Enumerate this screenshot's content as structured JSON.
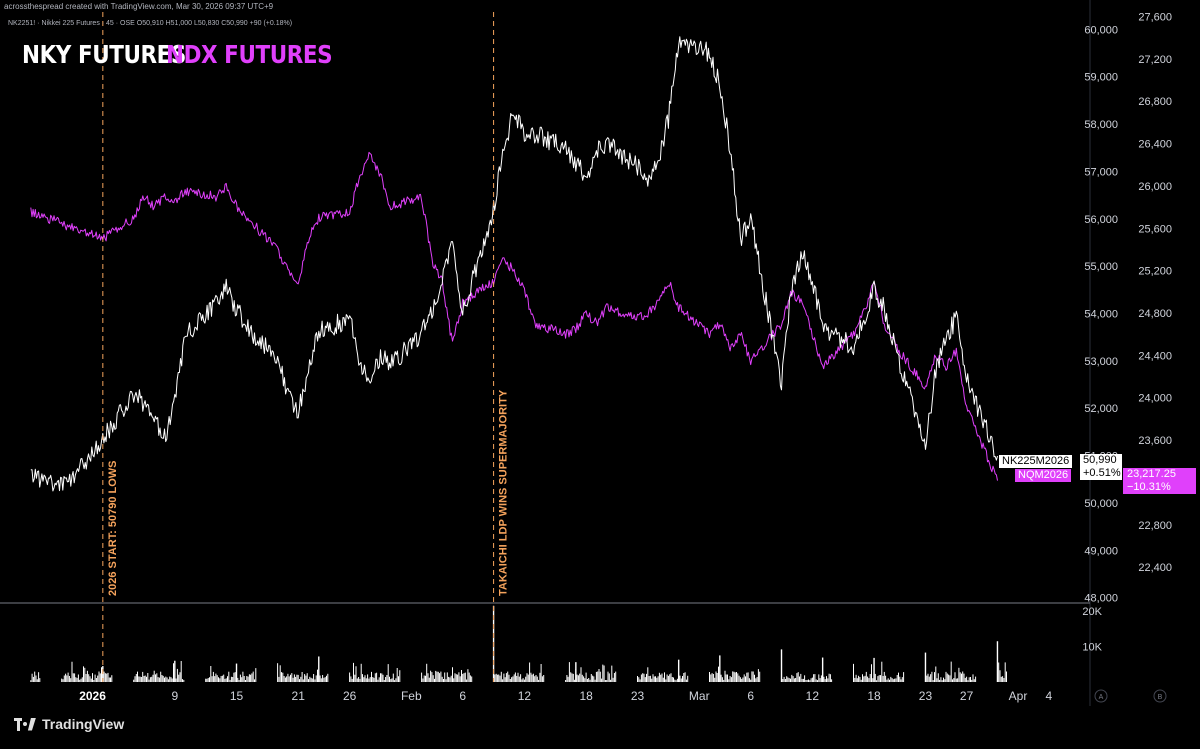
{
  "header": {
    "credit": "acrossthespread created with TradingView.com, Mar 30, 2026 09:37 UTC+9",
    "symbol_line": "NK2251! · Nikkei 225 Futures · 45 · OSE  O50,910  H51,000  L50,830  C50,990  +90 (+0.18%)"
  },
  "titles": {
    "nky": "NKY FUTURES",
    "ndx": "NDX FUTURES"
  },
  "annotations": [
    {
      "label": "2026 START: 50790 LOWS",
      "date": "2026-01-02"
    },
    {
      "label": "TAKAICHI LDP WINS SUPERMAJORITY",
      "date": "2026-02-09"
    }
  ],
  "price_tags": {
    "nky": {
      "symbol": "NK225M2026",
      "price": "50,990",
      "change": "+0.51%"
    },
    "ndx": {
      "symbol": "NQM2026",
      "price": "23,217.25",
      "change": "−10.31%"
    }
  },
  "footer": {
    "brand": "TradingView",
    "axis_buttons": [
      "A",
      "B"
    ]
  },
  "colors": {
    "nky": "#ffffff",
    "ndx": "#e040fb",
    "annotation": "#f5a35c",
    "background": "#000000",
    "volume": "#ffffff"
  },
  "chart_data": {
    "type": "line",
    "x_axis": {
      "type": "date",
      "tick_labels": [
        "2026",
        "9",
        "15",
        "21",
        "26",
        "Feb",
        "6",
        "12",
        "18",
        "23",
        "Mar",
        "6",
        "12",
        "18",
        "23",
        "27",
        "Apr",
        "4"
      ],
      "tick_dates": [
        "2026-01-01",
        "2026-01-09",
        "2026-01-15",
        "2026-01-21",
        "2026-01-26",
        "2026-02-01",
        "2026-02-06",
        "2026-02-12",
        "2026-02-18",
        "2026-02-23",
        "2026-03-01",
        "2026-03-06",
        "2026-03-12",
        "2026-03-18",
        "2026-03-23",
        "2026-03-27",
        "2026-04-01",
        "2026-04-04"
      ]
    },
    "y_axis_left": {
      "series": "NKY FUTURES",
      "range": [
        47950,
        60450
      ],
      "tick_values": [
        48000,
        49000,
        50000,
        51000,
        52000,
        53000,
        54000,
        55000,
        56000,
        57000,
        58000,
        59000,
        60000
      ],
      "tick_labels": [
        "48,000",
        "49,000",
        "50,000",
        "51,000",
        "52,000",
        "53,000",
        "54,000",
        "55,000",
        "56,000",
        "57,000",
        "58,000",
        "59,000",
        "60,000"
      ]
    },
    "y_axis_right": {
      "series": "NDX FUTURES",
      "range": [
        22090,
        27680
      ],
      "tick_values": [
        22400,
        22800,
        23200,
        23600,
        24000,
        24400,
        24800,
        25200,
        25600,
        26000,
        26400,
        26800,
        27200,
        27600
      ],
      "tick_labels": [
        "22,400",
        "22,800",
        "23,200",
        "23,600",
        "24,000",
        "24,400",
        "24,800",
        "25,200",
        "25,600",
        "26,000",
        "26,400",
        "26,800",
        "27,200",
        "27,600"
      ]
    },
    "volume_axis": {
      "tick_labels": [
        "20K",
        "10K"
      ],
      "tick_values": [
        20000,
        10000
      ],
      "max": 22000
    },
    "series": [
      {
        "name": "NKY FUTURES",
        "axis": "left",
        "points": [
          [
            "2025-12-26",
            50550
          ],
          [
            "2025-12-29",
            50350
          ],
          [
            "2025-12-30",
            50500
          ],
          [
            "2026-01-02",
            51350
          ],
          [
            "2026-01-05",
            52300
          ],
          [
            "2026-01-06",
            52100
          ],
          [
            "2026-01-07",
            51700
          ],
          [
            "2026-01-08",
            51400
          ],
          [
            "2026-01-09",
            52100
          ],
          [
            "2026-01-10",
            53500
          ],
          [
            "2026-01-13",
            54200
          ],
          [
            "2026-01-14",
            54550
          ],
          [
            "2026-01-15",
            54100
          ],
          [
            "2026-01-16",
            53700
          ],
          [
            "2026-01-19",
            53100
          ],
          [
            "2026-01-20",
            52300
          ],
          [
            "2026-01-21",
            51900
          ],
          [
            "2026-01-22",
            52800
          ],
          [
            "2026-01-23",
            53600
          ],
          [
            "2026-01-26",
            53900
          ],
          [
            "2026-01-27",
            52900
          ],
          [
            "2026-01-28",
            52700
          ],
          [
            "2026-01-29",
            53100
          ],
          [
            "2026-01-30",
            52900
          ],
          [
            "2026-02-02",
            53600
          ],
          [
            "2026-02-03",
            54000
          ],
          [
            "2026-02-04",
            54800
          ],
          [
            "2026-02-05",
            55400
          ],
          [
            "2026-02-06",
            54000
          ],
          [
            "2026-02-09",
            56200
          ],
          [
            "2026-02-10",
            57500
          ],
          [
            "2026-02-11",
            58300
          ],
          [
            "2026-02-12",
            57700
          ],
          [
            "2026-02-13",
            57800
          ],
          [
            "2026-02-16",
            57500
          ],
          [
            "2026-02-17",
            57200
          ],
          [
            "2026-02-18",
            56900
          ],
          [
            "2026-02-19",
            57400
          ],
          [
            "2026-02-20",
            57600
          ],
          [
            "2026-02-23",
            57100
          ],
          [
            "2026-02-24",
            56800
          ],
          [
            "2026-02-25",
            57200
          ],
          [
            "2026-02-26",
            58100
          ],
          [
            "2026-02-27",
            59700
          ],
          [
            "2026-03-02",
            59500
          ],
          [
            "2026-03-03",
            58800
          ],
          [
            "2026-03-04",
            57500
          ],
          [
            "2026-03-05",
            55600
          ],
          [
            "2026-03-06",
            56000
          ],
          [
            "2026-03-09",
            52500
          ],
          [
            "2026-03-10",
            54600
          ],
          [
            "2026-03-11",
            55300
          ],
          [
            "2026-03-12",
            54700
          ],
          [
            "2026-03-13",
            53700
          ],
          [
            "2026-03-16",
            53300
          ],
          [
            "2026-03-17",
            53900
          ],
          [
            "2026-03-18",
            54500
          ],
          [
            "2026-03-19",
            54100
          ],
          [
            "2026-03-20",
            53300
          ],
          [
            "2026-03-23",
            51200
          ],
          [
            "2026-03-24",
            52800
          ],
          [
            "2026-03-25",
            53500
          ],
          [
            "2026-03-26",
            53900
          ],
          [
            "2026-03-27",
            52600
          ],
          [
            "2026-03-30",
            50990
          ]
        ]
      },
      {
        "name": "NDX FUTURES",
        "axis": "right",
        "points": [
          [
            "2025-12-26",
            25750
          ],
          [
            "2025-12-29",
            25650
          ],
          [
            "2025-12-30",
            25600
          ],
          [
            "2026-01-02",
            25500
          ],
          [
            "2026-01-05",
            25700
          ],
          [
            "2026-01-06",
            25900
          ],
          [
            "2026-01-07",
            25800
          ],
          [
            "2026-01-08",
            25900
          ],
          [
            "2026-01-09",
            25850
          ],
          [
            "2026-01-10",
            25950
          ],
          [
            "2026-01-13",
            25900
          ],
          [
            "2026-01-14",
            26000
          ],
          [
            "2026-01-15",
            25800
          ],
          [
            "2026-01-16",
            25700
          ],
          [
            "2026-01-19",
            25400
          ],
          [
            "2026-01-20",
            25200
          ],
          [
            "2026-01-21",
            25050
          ],
          [
            "2026-01-22",
            25500
          ],
          [
            "2026-01-23",
            25700
          ],
          [
            "2026-01-26",
            25750
          ],
          [
            "2026-01-27",
            26100
          ],
          [
            "2026-01-28",
            26300
          ],
          [
            "2026-01-29",
            26100
          ],
          [
            "2026-01-30",
            25800
          ],
          [
            "2026-02-02",
            25900
          ],
          [
            "2026-02-03",
            25300
          ],
          [
            "2026-02-04",
            25100
          ],
          [
            "2026-02-05",
            24500
          ],
          [
            "2026-02-06",
            24900
          ],
          [
            "2026-02-09",
            25100
          ],
          [
            "2026-02-10",
            25300
          ],
          [
            "2026-02-11",
            25200
          ],
          [
            "2026-02-12",
            25000
          ],
          [
            "2026-02-13",
            24700
          ],
          [
            "2026-02-16",
            24600
          ],
          [
            "2026-02-17",
            24650
          ],
          [
            "2026-02-18",
            24800
          ],
          [
            "2026-02-19",
            24700
          ],
          [
            "2026-02-20",
            24850
          ],
          [
            "2026-02-23",
            24750
          ],
          [
            "2026-02-24",
            24800
          ],
          [
            "2026-02-25",
            24900
          ],
          [
            "2026-02-26",
            25100
          ],
          [
            "2026-02-27",
            24850
          ],
          [
            "2026-03-02",
            24600
          ],
          [
            "2026-03-03",
            24700
          ],
          [
            "2026-03-04",
            24450
          ],
          [
            "2026-03-05",
            24600
          ],
          [
            "2026-03-06",
            24350
          ],
          [
            "2026-03-09",
            24700
          ],
          [
            "2026-03-10",
            25000
          ],
          [
            "2026-03-11",
            24900
          ],
          [
            "2026-03-12",
            24600
          ],
          [
            "2026-03-13",
            24300
          ],
          [
            "2026-03-16",
            24600
          ],
          [
            "2026-03-17",
            24800
          ],
          [
            "2026-03-18",
            25100
          ],
          [
            "2026-03-19",
            24700
          ],
          [
            "2026-03-20",
            24500
          ],
          [
            "2026-03-23",
            24100
          ],
          [
            "2026-03-24",
            24400
          ],
          [
            "2026-03-25",
            24300
          ],
          [
            "2026-03-26",
            24450
          ],
          [
            "2026-03-27",
            23900
          ],
          [
            "2026-03-30",
            23217
          ]
        ]
      }
    ],
    "volume": {
      "name": "Volume",
      "points": [
        [
          "2026-01-02",
          4500
        ],
        [
          "2026-01-09",
          6000
        ],
        [
          "2026-01-15",
          5200
        ],
        [
          "2026-01-23",
          7200
        ],
        [
          "2026-02-09",
          21500
        ],
        [
          "2026-02-17",
          5600
        ],
        [
          "2026-02-27",
          6300
        ],
        [
          "2026-03-03",
          7500
        ],
        [
          "2026-03-09",
          9200
        ],
        [
          "2026-03-13",
          6900
        ],
        [
          "2026-03-18",
          6800
        ],
        [
          "2026-03-23",
          8300
        ],
        [
          "2026-03-30",
          11500
        ]
      ]
    }
  }
}
